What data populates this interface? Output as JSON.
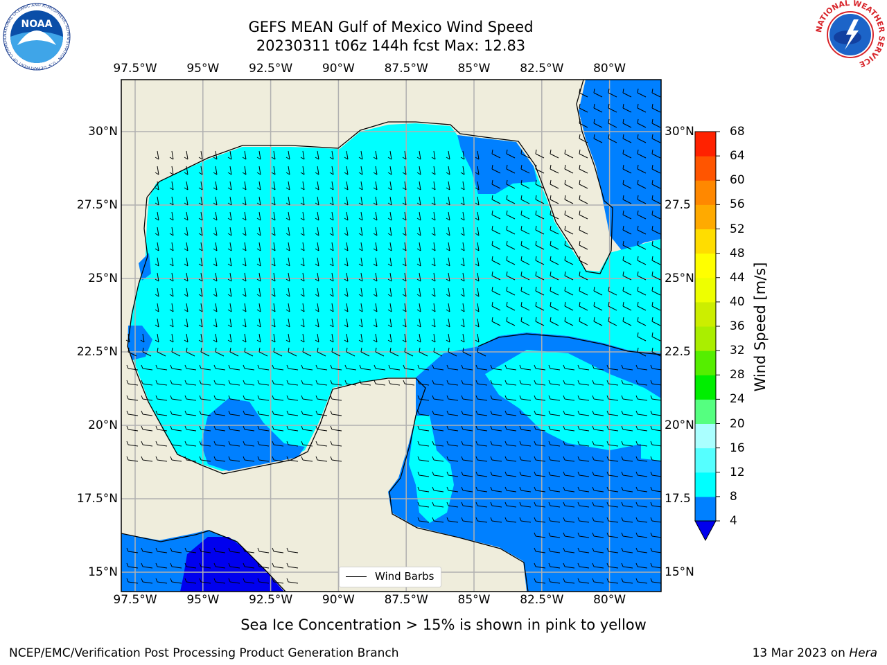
{
  "title": {
    "line1": "GEFS MEAN Gulf of Mexico Wind Speed",
    "line2": "20230311 t06z 144h fcst   Max: 12.83"
  },
  "map": {
    "lon_ticks": [
      "97.5°W",
      "95°W",
      "92.5°W",
      "90°W",
      "87.5°W",
      "85°W",
      "82.5°W",
      "80°W"
    ],
    "lat_ticks": [
      "30°N",
      "27.5°N",
      "25°N",
      "22.5°N",
      "20°N",
      "17.5°N",
      "15°N"
    ],
    "lat_ticks_right": [
      "30°N",
      "27.5",
      "25°N",
      "22.5",
      "20°N",
      "17.5",
      "15°N"
    ],
    "legend_label": "Wind Barbs",
    "colors": {
      "land": "#efeddc",
      "speed_4_8": "#0080ff",
      "speed_8_12": "#00ffff",
      "speed_below_4": "#0000ee",
      "gridline": "#b0b0b0"
    }
  },
  "colorbar": {
    "title": "Wind Speed [m/s]",
    "levels": [
      "4",
      "8",
      "12",
      "16",
      "20",
      "24",
      "28",
      "32",
      "36",
      "40",
      "44",
      "48",
      "52",
      "56",
      "60",
      "64",
      "68"
    ],
    "colors": [
      "#0080ff",
      "#00ffff",
      "#55ffff",
      "#aaffff",
      "#55ff80",
      "#00ee00",
      "#55ee00",
      "#aaee00",
      "#ccee00",
      "#eeff00",
      "#ffff00",
      "#ffdd00",
      "#ffaa00",
      "#ff8800",
      "#ff5500",
      "#ff2200"
    ],
    "under_color": "#0000ee"
  },
  "note": "Sea Ice Concentration > 15% is shown in pink to yellow",
  "footer": {
    "left": "NCEP/EMC/Verification Post Processing Product Generation Branch",
    "right_prefix": "13 Mar 2023 on ",
    "right_italic": "Hera"
  },
  "logos": {
    "left": "NOAA",
    "left_ring": "NATIONAL OCEANIC AND ATMOSPHERIC ADMINISTRATION · U.S. DEPARTMENT OF COMMERCE",
    "right_ring": "NATIONAL WEATHER SERVICE"
  }
}
